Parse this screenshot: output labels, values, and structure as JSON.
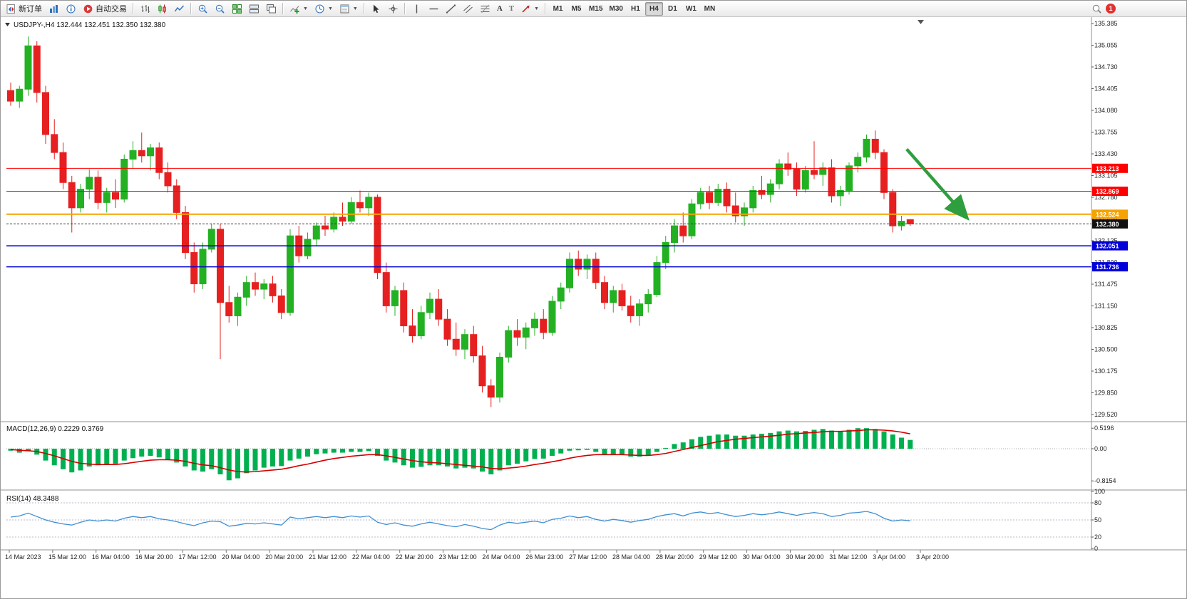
{
  "toolbar": {
    "new_order_label": "新订单",
    "auto_trading_label": "自动交易",
    "text_tool_label": "A",
    "label_tool_label": "T",
    "timeframes": [
      "M1",
      "M5",
      "M15",
      "M30",
      "H1",
      "H4",
      "D1",
      "W1",
      "MN"
    ],
    "active_timeframe": "H4",
    "notification_count": "1"
  },
  "chart": {
    "symbol_info": "USDJPY-,H4  132.444 132.451 132.350 132.380",
    "macd_header": "MACD(12,26,9) 0.2229 0.3769",
    "rsi_header": "RSI(14) 48.3488"
  },
  "colors": {
    "bull": "#23b123",
    "bear": "#e62020",
    "macd_bar": "#00b050",
    "macd_signal": "#d40000",
    "rsi_line": "#3f8fd2",
    "grid_dotted": "#b8b8c8"
  },
  "chart_data": [
    {
      "type": "candlestick",
      "symbol": "USDJPY-",
      "timeframe": "H4",
      "ohlc": {
        "open": 132.444,
        "high": 132.451,
        "low": 132.35,
        "close": 132.38
      },
      "ylim": [
        129.52,
        135.385
      ],
      "y_ticks": [
        "135.385",
        "135.055",
        "134.730",
        "134.405",
        "134.080",
        "133.755",
        "133.430",
        "133.105",
        "132.780",
        "132.455",
        "132.125",
        "131.800",
        "131.475",
        "131.150",
        "130.825",
        "130.500",
        "130.175",
        "129.850",
        "129.520"
      ],
      "x_ticks": [
        "14 Mar 2023",
        "15 Mar 12:00",
        "16 Mar 04:00",
        "16 Mar 20:00",
        "17 Mar 12:00",
        "20 Mar 04:00",
        "20 Mar 20:00",
        "21 Mar 12:00",
        "22 Mar 04:00",
        "22 Mar 20:00",
        "23 Mar 12:00",
        "24 Mar 04:00",
        "26 Mar 23:00",
        "27 Mar 12:00",
        "28 Mar 04:00",
        "28 Mar 20:00",
        "29 Mar 12:00",
        "30 Mar 04:00",
        "30 Mar 20:00",
        "31 Mar 12:00",
        "3 Apr 04:00",
        "3 Apr 20:00"
      ],
      "hlines": [
        {
          "price": 133.213,
          "color": "#ff0000",
          "label": "133.213",
          "width": 1
        },
        {
          "price": 132.869,
          "color": "#ff0000",
          "label": "132.869",
          "width": 1
        },
        {
          "price": 132.524,
          "color": "#f5a300",
          "label": "132.524",
          "width": 2
        },
        {
          "price": 132.38,
          "color": "#404040",
          "label": "132.380",
          "width": 1,
          "dash": "3,2",
          "label_bg": "#111111"
        },
        {
          "price": 132.051,
          "color": "#0000d8",
          "label": "132.051",
          "width": 1.5
        },
        {
          "price": 131.736,
          "color": "#0000d8",
          "label": "131.736",
          "width": 1.5
        }
      ],
      "arrow": {
        "i1": 102.6,
        "p1": 133.5,
        "i2": 109.3,
        "p2": 132.5,
        "color": "#2e9e3e"
      },
      "candles_ohlc": [
        [
          134.38,
          134.5,
          134.15,
          134.22
        ],
        [
          134.22,
          134.45,
          134.12,
          134.4
        ],
        [
          134.4,
          135.19,
          134.3,
          135.05
        ],
        [
          135.05,
          135.12,
          134.2,
          134.35
        ],
        [
          134.35,
          134.45,
          133.58,
          133.72
        ],
        [
          133.72,
          133.95,
          133.35,
          133.45
        ],
        [
          133.45,
          133.6,
          132.9,
          133.0
        ],
        [
          133.0,
          133.1,
          132.25,
          132.62
        ],
        [
          132.62,
          132.98,
          132.55,
          132.9
        ],
        [
          132.9,
          133.2,
          132.75,
          133.08
        ],
        [
          133.08,
          133.18,
          132.6,
          132.7
        ],
        [
          132.7,
          132.92,
          132.55,
          132.85
        ],
        [
          132.85,
          133.05,
          132.62,
          132.75
        ],
        [
          132.75,
          133.42,
          132.7,
          133.35
        ],
        [
          133.35,
          133.62,
          133.2,
          133.48
        ],
        [
          133.48,
          133.75,
          133.3,
          133.4
        ],
        [
          133.4,
          133.58,
          133.18,
          133.52
        ],
        [
          133.52,
          133.6,
          133.05,
          133.15
        ],
        [
          133.15,
          133.3,
          132.85,
          132.95
        ],
        [
          132.95,
          133.05,
          132.45,
          132.55
        ],
        [
          132.55,
          132.65,
          131.85,
          131.95
        ],
        [
          131.95,
          132.1,
          131.35,
          131.48
        ],
        [
          131.48,
          132.1,
          131.4,
          132.0
        ],
        [
          132.0,
          132.38,
          131.95,
          132.3
        ],
        [
          132.3,
          132.38,
          130.35,
          131.2
        ],
        [
          131.2,
          131.45,
          130.9,
          131.0
        ],
        [
          131.0,
          131.35,
          130.85,
          131.28
        ],
        [
          131.28,
          131.6,
          131.15,
          131.5
        ],
        [
          131.5,
          131.65,
          131.3,
          131.4
        ],
        [
          131.4,
          131.55,
          131.25,
          131.48
        ],
        [
          131.48,
          131.6,
          131.2,
          131.3
        ],
        [
          131.3,
          131.4,
          130.95,
          131.05
        ],
        [
          131.05,
          132.3,
          131.0,
          132.2
        ],
        [
          132.2,
          132.35,
          131.8,
          131.9
        ],
        [
          131.9,
          132.25,
          131.85,
          132.15
        ],
        [
          132.15,
          132.4,
          132.05,
          132.35
        ],
        [
          132.35,
          132.5,
          132.2,
          132.3
        ],
        [
          132.3,
          132.55,
          132.25,
          132.48
        ],
        [
          132.48,
          132.7,
          132.35,
          132.42
        ],
        [
          132.42,
          132.78,
          132.38,
          132.7
        ],
        [
          132.7,
          132.88,
          132.55,
          132.62
        ],
        [
          132.62,
          132.85,
          132.5,
          132.78
        ],
        [
          132.78,
          132.82,
          131.55,
          131.65
        ],
        [
          131.65,
          131.8,
          131.05,
          131.15
        ],
        [
          131.15,
          131.45,
          131.0,
          131.38
        ],
        [
          131.38,
          131.5,
          130.75,
          130.85
        ],
        [
          130.85,
          131.1,
          130.6,
          130.7
        ],
        [
          130.7,
          131.15,
          130.65,
          131.05
        ],
        [
          131.05,
          131.35,
          130.95,
          131.25
        ],
        [
          131.25,
          131.4,
          130.85,
          130.95
        ],
        [
          130.95,
          131.1,
          130.55,
          130.65
        ],
        [
          130.65,
          130.9,
          130.4,
          130.5
        ],
        [
          130.5,
          130.8,
          130.35,
          130.72
        ],
        [
          130.72,
          130.85,
          130.3,
          130.4
        ],
        [
          130.4,
          130.55,
          129.85,
          129.95
        ],
        [
          129.95,
          130.05,
          129.63,
          129.78
        ],
        [
          129.78,
          130.45,
          129.7,
          130.38
        ],
        [
          130.38,
          130.85,
          130.3,
          130.78
        ],
        [
          130.78,
          130.95,
          130.55,
          130.68
        ],
        [
          130.68,
          130.9,
          130.5,
          130.82
        ],
        [
          130.82,
          131.05,
          130.7,
          130.95
        ],
        [
          130.95,
          131.1,
          130.65,
          130.75
        ],
        [
          130.75,
          131.3,
          130.7,
          131.22
        ],
        [
          131.22,
          131.5,
          131.1,
          131.42
        ],
        [
          131.42,
          131.95,
          131.35,
          131.85
        ],
        [
          131.85,
          131.98,
          131.6,
          131.7
        ],
        [
          131.7,
          131.92,
          131.55,
          131.85
        ],
        [
          131.85,
          131.95,
          131.4,
          131.5
        ],
        [
          131.5,
          131.6,
          131.1,
          131.2
        ],
        [
          131.2,
          131.45,
          131.05,
          131.38
        ],
        [
          131.38,
          131.48,
          131.08,
          131.15
        ],
        [
          131.15,
          131.3,
          130.9,
          131.0
        ],
        [
          131.0,
          131.25,
          130.85,
          131.18
        ],
        [
          131.18,
          131.4,
          131.05,
          131.32
        ],
        [
          131.32,
          131.9,
          131.28,
          131.8
        ],
        [
          131.8,
          132.2,
          131.7,
          132.1
        ],
        [
          132.1,
          132.45,
          131.95,
          132.35
        ],
        [
          132.35,
          132.55,
          132.1,
          132.2
        ],
        [
          132.2,
          132.75,
          132.15,
          132.68
        ],
        [
          132.68,
          132.92,
          132.6,
          132.85
        ],
        [
          132.85,
          132.95,
          132.6,
          132.7
        ],
        [
          132.7,
          132.98,
          132.65,
          132.9
        ],
        [
          132.9,
          133.0,
          132.55,
          132.65
        ],
        [
          132.65,
          132.85,
          132.4,
          132.5
        ],
        [
          132.5,
          132.7,
          132.35,
          132.62
        ],
        [
          132.62,
          132.95,
          132.55,
          132.88
        ],
        [
          132.88,
          133.1,
          132.75,
          132.82
        ],
        [
          132.82,
          133.05,
          132.7,
          132.98
        ],
        [
          132.98,
          133.35,
          132.9,
          133.28
        ],
        [
          133.28,
          133.45,
          133.1,
          133.2
        ],
        [
          133.2,
          133.3,
          132.8,
          132.9
        ],
        [
          132.9,
          133.25,
          132.85,
          133.18
        ],
        [
          133.18,
          133.62,
          133.05,
          133.12
        ],
        [
          133.12,
          133.3,
          132.95,
          133.22
        ],
        [
          133.22,
          133.35,
          132.7,
          132.8
        ],
        [
          132.8,
          132.95,
          132.65,
          132.88
        ],
        [
          132.88,
          133.3,
          132.82,
          133.25
        ],
        [
          133.25,
          133.45,
          133.15,
          133.38
        ],
        [
          133.38,
          133.72,
          133.3,
          133.65
        ],
        [
          133.65,
          133.78,
          133.35,
          133.45
        ],
        [
          133.45,
          133.5,
          132.75,
          132.85
        ],
        [
          132.85,
          132.9,
          132.25,
          132.35
        ],
        [
          132.35,
          132.5,
          132.28,
          132.42
        ],
        [
          132.444,
          132.451,
          132.35,
          132.38
        ]
      ]
    },
    {
      "type": "bar",
      "name": "MACD",
      "params": "12,26,9",
      "value_main": "0.2229",
      "value_signal": "0.3769",
      "y_ticks": [
        "0.5196",
        "0.00",
        "-0.8154"
      ],
      "y_tick_values": [
        0.5196,
        0,
        -0.8154
      ],
      "values": [
        -0.05,
        -0.1,
        -0.05,
        -0.15,
        -0.3,
        -0.42,
        -0.52,
        -0.6,
        -0.55,
        -0.45,
        -0.42,
        -0.4,
        -0.38,
        -0.3,
        -0.24,
        -0.2,
        -0.18,
        -0.22,
        -0.28,
        -0.35,
        -0.45,
        -0.55,
        -0.58,
        -0.52,
        -0.65,
        -0.8,
        -0.75,
        -0.62,
        -0.55,
        -0.48,
        -0.45,
        -0.44,
        -0.3,
        -0.25,
        -0.2,
        -0.14,
        -0.12,
        -0.1,
        -0.1,
        -0.08,
        -0.08,
        -0.06,
        -0.18,
        -0.3,
        -0.35,
        -0.42,
        -0.48,
        -0.46,
        -0.42,
        -0.42,
        -0.45,
        -0.5,
        -0.48,
        -0.5,
        -0.58,
        -0.65,
        -0.55,
        -0.42,
        -0.38,
        -0.32,
        -0.26,
        -0.25,
        -0.18,
        -0.12,
        -0.05,
        -0.04,
        -0.03,
        -0.08,
        -0.14,
        -0.14,
        -0.16,
        -0.2,
        -0.2,
        -0.16,
        -0.08,
        0.02,
        0.12,
        0.16,
        0.24,
        0.3,
        0.33,
        0.36,
        0.36,
        0.33,
        0.33,
        0.36,
        0.38,
        0.4,
        0.44,
        0.46,
        0.44,
        0.45,
        0.48,
        0.5,
        0.46,
        0.44,
        0.48,
        0.52,
        0.52,
        0.5,
        0.44,
        0.36,
        0.28,
        0.2229
      ],
      "signal": [
        -0.02,
        -0.04,
        -0.05,
        -0.07,
        -0.12,
        -0.18,
        -0.25,
        -0.32,
        -0.37,
        -0.39,
        -0.4,
        -0.4,
        -0.4,
        -0.38,
        -0.35,
        -0.32,
        -0.29,
        -0.28,
        -0.28,
        -0.29,
        -0.32,
        -0.37,
        -0.41,
        -0.43,
        -0.48,
        -0.54,
        -0.58,
        -0.59,
        -0.58,
        -0.56,
        -0.54,
        -0.52,
        -0.48,
        -0.43,
        -0.39,
        -0.34,
        -0.29,
        -0.25,
        -0.22,
        -0.19,
        -0.17,
        -0.15,
        -0.15,
        -0.18,
        -0.22,
        -0.26,
        -0.3,
        -0.33,
        -0.35,
        -0.36,
        -0.38,
        -0.4,
        -0.42,
        -0.44,
        -0.46,
        -0.5,
        -0.51,
        -0.49,
        -0.47,
        -0.44,
        -0.4,
        -0.37,
        -0.33,
        -0.29,
        -0.24,
        -0.2,
        -0.17,
        -0.15,
        -0.15,
        -0.15,
        -0.15,
        -0.16,
        -0.17,
        -0.17,
        -0.15,
        -0.12,
        -0.07,
        -0.02,
        0.03,
        0.08,
        0.13,
        0.18,
        0.21,
        0.24,
        0.26,
        0.28,
        0.3,
        0.32,
        0.34,
        0.37,
        0.38,
        0.4,
        0.41,
        0.43,
        0.44,
        0.44,
        0.45,
        0.46,
        0.48,
        0.48,
        0.47,
        0.45,
        0.42,
        0.3769
      ]
    },
    {
      "type": "line",
      "name": "RSI",
      "period": 14,
      "value": "48.3488",
      "levels": [
        80,
        50,
        20
      ],
      "y_ticks": [
        "100",
        "80",
        "50",
        "20",
        "0"
      ],
      "y_tick_values": [
        100,
        80,
        50,
        20,
        0
      ],
      "values": [
        55,
        57,
        62,
        56,
        50,
        46,
        43,
        41,
        46,
        50,
        48,
        50,
        48,
        53,
        56,
        54,
        56,
        52,
        50,
        47,
        43,
        40,
        45,
        48,
        47,
        39,
        41,
        44,
        43,
        45,
        43,
        41,
        55,
        52,
        54,
        56,
        54,
        56,
        54,
        57,
        55,
        57,
        46,
        42,
        45,
        41,
        39,
        43,
        46,
        43,
        40,
        38,
        42,
        39,
        35,
        33,
        41,
        46,
        44,
        46,
        48,
        45,
        51,
        53,
        57,
        54,
        56,
        51,
        48,
        51,
        49,
        46,
        49,
        51,
        56,
        59,
        61,
        57,
        62,
        64,
        61,
        63,
        59,
        56,
        58,
        61,
        59,
        61,
        64,
        61,
        58,
        61,
        63,
        61,
        56,
        58,
        62,
        63,
        65,
        61,
        53,
        48,
        50,
        48.35
      ]
    }
  ]
}
